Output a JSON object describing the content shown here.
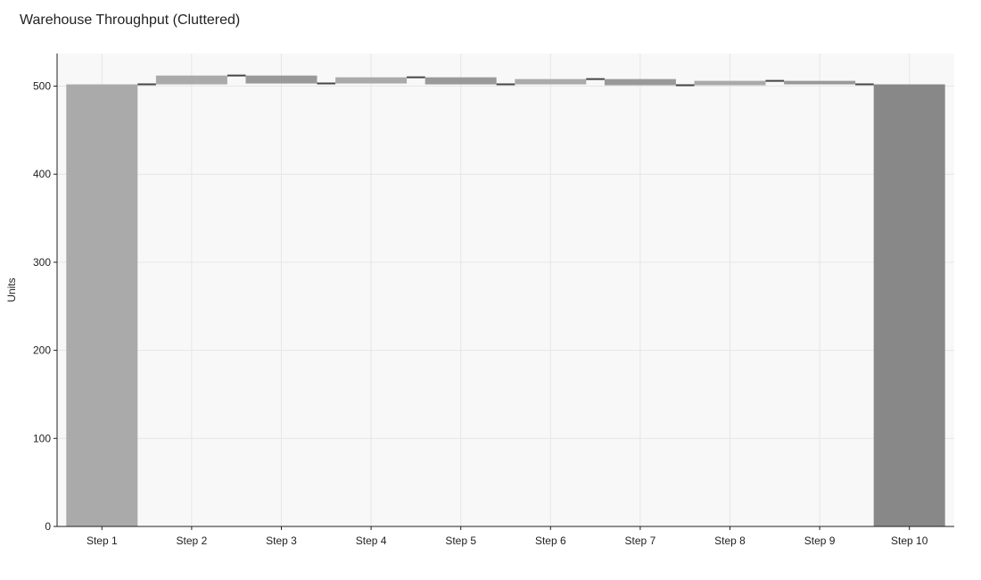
{
  "chart_data": {
    "type": "waterfall",
    "title": "Warehouse Throughput (Cluttered)",
    "xlabel": "",
    "ylabel": "Units",
    "categories": [
      "Step 1",
      "Step 2",
      "Step 3",
      "Step 4",
      "Step 5",
      "Step 6",
      "Step 7",
      "Step 8",
      "Step 9",
      "Step 10"
    ],
    "measures": [
      "absolute",
      "relative",
      "relative",
      "relative",
      "relative",
      "relative",
      "relative",
      "relative",
      "relative",
      "total"
    ],
    "values": [
      502,
      10,
      -9,
      7,
      -8,
      6,
      -7,
      5,
      -4,
      502
    ],
    "ylim": [
      0,
      537
    ],
    "yticks": [
      0,
      100,
      200,
      300,
      400,
      500
    ],
    "grid": true,
    "colors": {
      "increasing": "#aaaaaa",
      "decreasing": "#999999",
      "total": "#888888",
      "connector": "#444444",
      "plot_bg": "#f8f8f8",
      "grid": "#e6e6e6"
    }
  }
}
